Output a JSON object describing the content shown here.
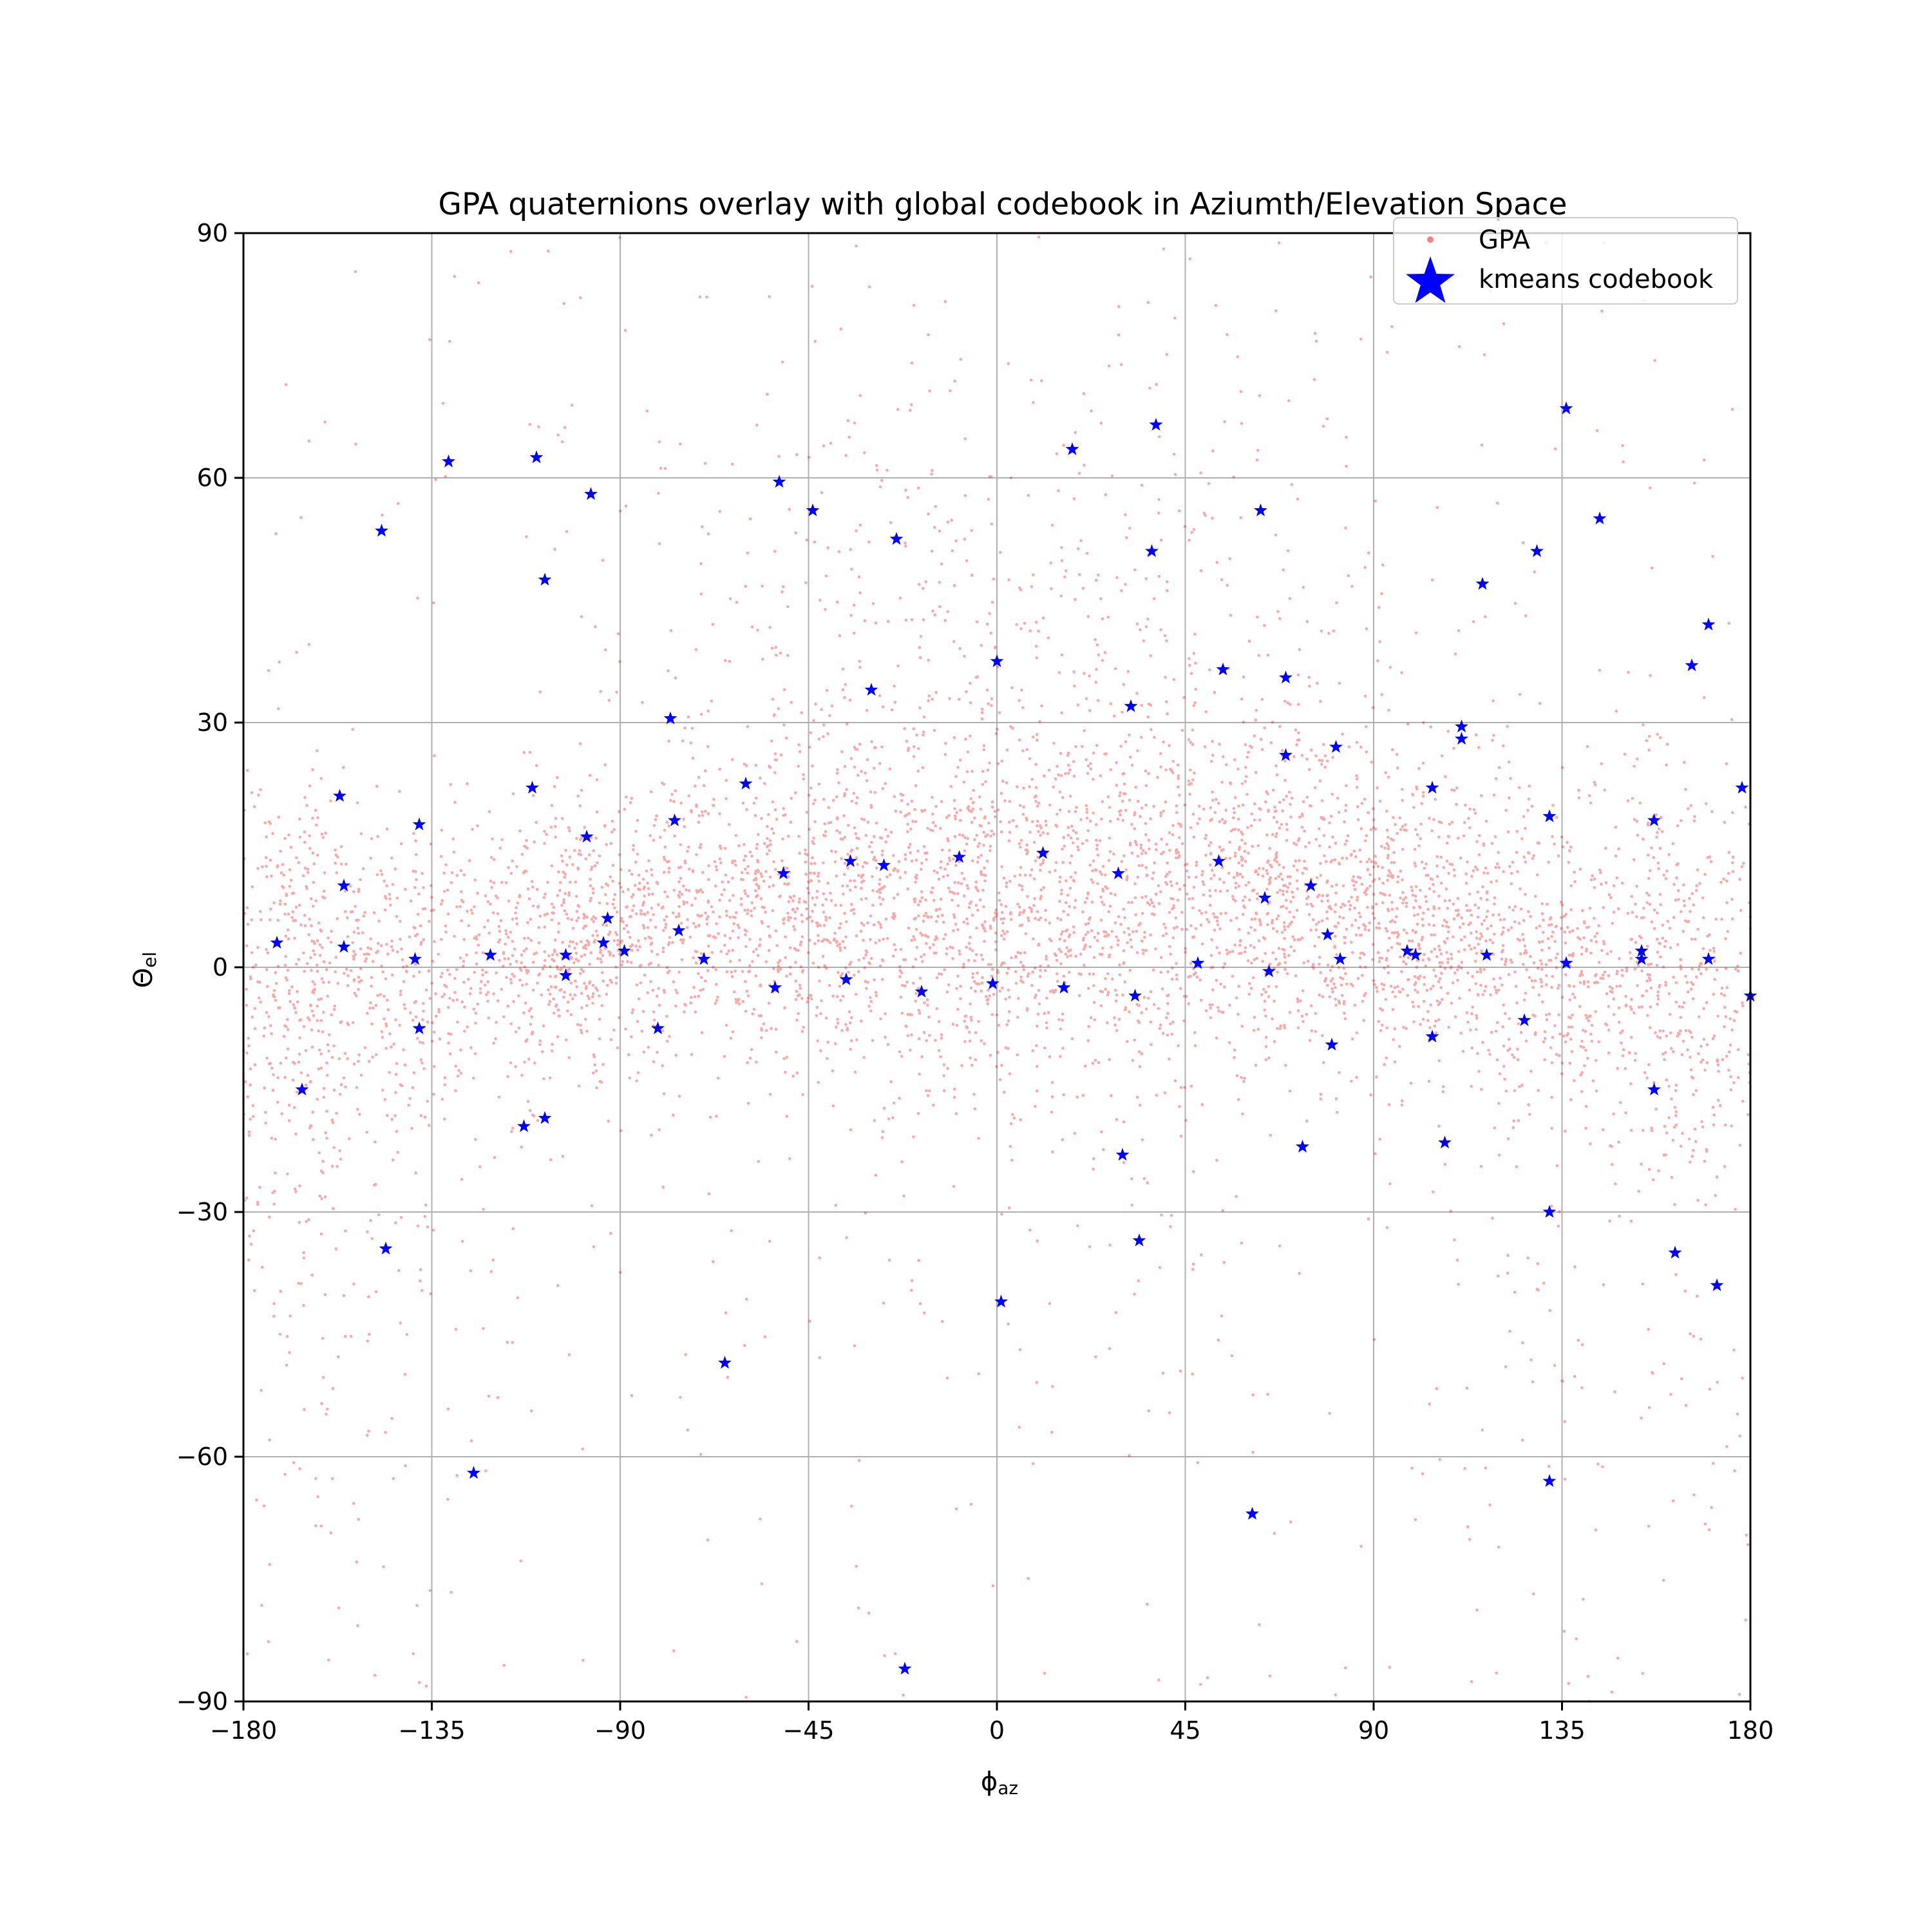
{
  "chart_data": {
    "type": "scatter",
    "title": "GPA quaternions overlay with global codebook in Aziumth/Elevation Space",
    "xlabel": "ϕ",
    "xlabel_sub": "az",
    "ylabel": "Θ",
    "ylabel_sub": "el",
    "xlim": [
      -180,
      180
    ],
    "ylim": [
      -90,
      90
    ],
    "xticks": [
      -180,
      -135,
      -90,
      -45,
      0,
      45,
      90,
      135,
      180
    ],
    "yticks": [
      -90,
      -60,
      -30,
      0,
      30,
      60,
      90
    ],
    "xtick_labels": [
      "−180",
      "−135",
      "−90",
      "−45",
      "0",
      "45",
      "90",
      "135",
      "180"
    ],
    "ytick_labels": [
      "−90",
      "−60",
      "−30",
      "0",
      "30",
      "60",
      "90"
    ],
    "grid": true,
    "legend_position": "top-right",
    "series": [
      {
        "name": "GPA",
        "marker": "dot",
        "color": "#ff0000",
        "density_bands": [
          {
            "x": -170,
            "y": -3,
            "sx": 14,
            "sy": 14,
            "w": 5
          },
          {
            "x": -140,
            "y": -1,
            "sx": 18,
            "sy": 10,
            "w": 6
          },
          {
            "x": -100,
            "y": 3,
            "sx": 14,
            "sy": 8,
            "w": 7
          },
          {
            "x": -60,
            "y": 7,
            "sx": 22,
            "sy": 9,
            "w": 10
          },
          {
            "x": -20,
            "y": 8,
            "sx": 20,
            "sy": 11,
            "w": 9
          },
          {
            "x": 20,
            "y": 8,
            "sx": 20,
            "sy": 11,
            "w": 9
          },
          {
            "x": 60,
            "y": 10,
            "sx": 18,
            "sy": 12,
            "w": 9
          },
          {
            "x": 95,
            "y": 6,
            "sx": 16,
            "sy": 9,
            "w": 9
          },
          {
            "x": 130,
            "y": 2,
            "sx": 16,
            "sy": 9,
            "w": 7
          },
          {
            "x": 165,
            "y": -2,
            "sx": 14,
            "sy": 12,
            "w": 6
          },
          {
            "x": -30,
            "y": 40,
            "sx": 35,
            "sy": 18,
            "w": 4
          },
          {
            "x": 30,
            "y": 40,
            "sx": 35,
            "sy": 18,
            "w": 4
          },
          {
            "x": 0,
            "y": -25,
            "sx": 60,
            "sy": 15,
            "w": 2
          },
          {
            "x": -160,
            "y": -40,
            "sx": 22,
            "sy": 22,
            "w": 2
          },
          {
            "x": 150,
            "y": -35,
            "sx": 25,
            "sy": 22,
            "w": 2
          }
        ],
        "uniform_background_weight": 0.06,
        "sample_count": 90000
      },
      {
        "name": "kmeans codebook",
        "marker": "star",
        "color": "#0000ff",
        "x": [
          -172,
          -166,
          -157,
          -156,
          -156,
          -147,
          -146,
          -139,
          -138,
          -138,
          -131,
          -125,
          -121,
          -113,
          -111,
          -110,
          -108,
          -108,
          -103,
          -103,
          -98,
          -97,
          -94,
          -93,
          -89,
          -81,
          -78,
          -77,
          -76,
          -70,
          -65,
          -60,
          -53,
          -52,
          -51,
          -44,
          -36,
          -35,
          -30,
          -27,
          -24,
          -22,
          -18,
          -9,
          -1,
          0,
          1,
          11,
          16,
          18,
          29,
          30,
          32,
          33,
          34,
          37,
          38,
          48,
          53,
          54,
          61,
          63,
          64,
          65,
          69,
          69,
          73,
          75,
          79,
          80,
          81,
          82,
          98,
          100,
          104,
          104,
          107,
          111,
          111,
          116,
          117,
          126,
          129,
          132,
          132,
          132,
          136,
          136,
          144,
          154,
          154,
          157,
          157,
          162,
          166,
          170,
          170,
          172,
          178,
          180
        ],
        "y": [
          3,
          -15,
          21,
          10,
          2.5,
          53.5,
          -34.5,
          1,
          17.5,
          -7.5,
          62,
          -62,
          1.5,
          -19.5,
          22,
          62.5,
          47.5,
          -18.5,
          1.5,
          -1,
          16,
          58,
          3,
          6,
          2,
          -7.5,
          30.5,
          18,
          4.5,
          1,
          -48.5,
          22.5,
          -2.5,
          59.5,
          11.5,
          56,
          -1.5,
          13,
          34,
          12.5,
          52.5,
          -86,
          -3,
          13.5,
          -2,
          37.5,
          -41,
          14,
          -2.5,
          63.5,
          11.5,
          -23,
          32,
          -3.5,
          -33.5,
          51,
          66.5,
          0.5,
          13,
          36.5,
          -67,
          56,
          8.5,
          -0.5,
          35.5,
          26,
          -22,
          10,
          4,
          -9.5,
          27,
          1,
          2,
          1.5,
          -8.5,
          22,
          -21.5,
          28,
          29.5,
          47,
          1.5,
          -6.5,
          51,
          18.5,
          -63,
          -30,
          0.5,
          68.5,
          55,
          2,
          1,
          18,
          -15,
          -35,
          37,
          1,
          42,
          -39,
          22,
          -3.5
        ]
      }
    ]
  }
}
